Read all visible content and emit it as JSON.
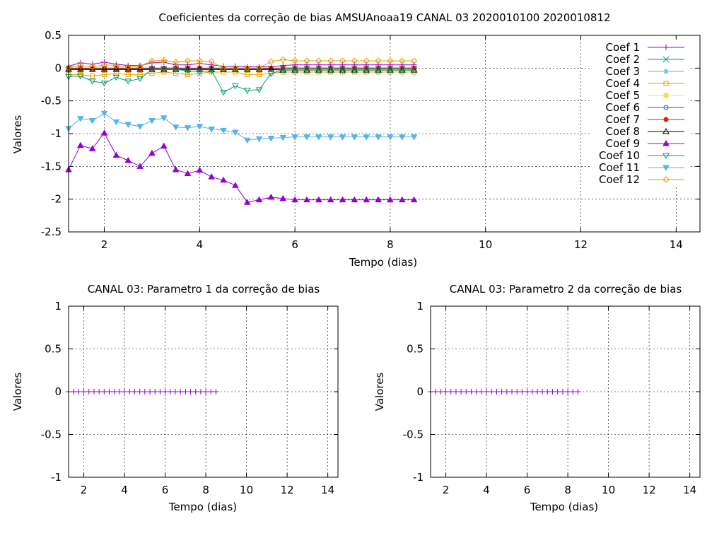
{
  "chart_data": [
    {
      "type": "line",
      "title": "Coeficientes da correção de bias AMSUAnoaa19 CANAL 03 2020010100 2020010812",
      "xlabel": "Tempo (dias)",
      "ylabel": "Valores",
      "xlim": [
        1.25,
        14.5
      ],
      "ylim": [
        -2.5,
        0.5
      ],
      "x_ticks": [
        "2",
        "4",
        "6",
        "8",
        "10",
        "12",
        "14"
      ],
      "y_ticks": [
        "0.5",
        "0",
        "-0.5",
        "-1",
        "-1.5",
        "-2",
        "-2.5"
      ],
      "grid": true,
      "legend_position": "top-right",
      "x": [
        1.25,
        1.5,
        1.75,
        2.0,
        2.25,
        2.5,
        2.75,
        3.0,
        3.25,
        3.5,
        3.75,
        4.0,
        4.25,
        4.5,
        4.75,
        5.0,
        5.25,
        5.5,
        5.75,
        6.0,
        6.25,
        6.5,
        6.75,
        7.0,
        7.25,
        7.5,
        7.75,
        8.0,
        8.25,
        8.5
      ],
      "series": [
        {
          "name": "Coef 1",
          "color": "#9400d3",
          "marker": "plus",
          "values": [
            0.03,
            0.08,
            0.06,
            0.09,
            0.06,
            0.04,
            0.04,
            0.08,
            0.09,
            0.05,
            0.05,
            0.07,
            0.05,
            0.03,
            0.03,
            0.02,
            0.02,
            0.02,
            0.04,
            0.05,
            0.05,
            0.05,
            0.05,
            0.05,
            0.05,
            0.05,
            0.05,
            0.05,
            0.05,
            0.05
          ]
        },
        {
          "name": "Coef 2",
          "color": "#009e73",
          "marker": "cross",
          "values": [
            -0.01,
            -0.01,
            -0.01,
            -0.01,
            -0.01,
            -0.01,
            -0.01,
            -0.01,
            -0.01,
            -0.01,
            -0.01,
            -0.01,
            -0.01,
            -0.01,
            -0.01,
            -0.01,
            -0.01,
            -0.01,
            -0.01,
            -0.01,
            -0.01,
            -0.01,
            -0.01,
            -0.01,
            -0.01,
            -0.01,
            -0.01,
            -0.01,
            -0.01,
            -0.01
          ]
        },
        {
          "name": "Coef 3",
          "color": "#56b4e9",
          "marker": "star",
          "values": [
            -0.02,
            -0.02,
            -0.02,
            -0.02,
            -0.02,
            -0.02,
            -0.02,
            -0.02,
            -0.02,
            -0.02,
            -0.02,
            -0.02,
            -0.02,
            -0.02,
            -0.02,
            -0.02,
            -0.02,
            -0.02,
            -0.02,
            -0.02,
            -0.02,
            -0.02,
            -0.02,
            -0.02,
            -0.02,
            -0.02,
            -0.02,
            -0.02,
            -0.02,
            -0.02
          ]
        },
        {
          "name": "Coef 4",
          "color": "#e69f00",
          "marker": "square-open",
          "values": [
            -0.1,
            -0.1,
            -0.12,
            -0.1,
            -0.08,
            -0.1,
            -0.1,
            -0.08,
            -0.06,
            -0.08,
            -0.1,
            -0.08,
            -0.06,
            -0.06,
            -0.06,
            -0.1,
            -0.1,
            -0.08,
            -0.06,
            -0.06,
            -0.06,
            -0.06,
            -0.06,
            -0.06,
            -0.06,
            -0.06,
            -0.06,
            -0.06,
            -0.06,
            -0.06
          ]
        },
        {
          "name": "Coef 5",
          "color": "#f0e442",
          "marker": "square",
          "values": [
            -0.02,
            -0.02,
            -0.02,
            -0.02,
            -0.02,
            -0.02,
            -0.02,
            -0.02,
            -0.02,
            -0.02,
            -0.02,
            -0.02,
            -0.02,
            -0.02,
            -0.02,
            -0.02,
            -0.02,
            -0.02,
            -0.02,
            -0.02,
            -0.02,
            -0.02,
            -0.02,
            -0.02,
            -0.02,
            -0.02,
            -0.02,
            -0.02,
            -0.02,
            -0.02
          ]
        },
        {
          "name": "Coef 6",
          "color": "#0072b2",
          "marker": "circle-open",
          "values": [
            -0.01,
            -0.01,
            -0.01,
            -0.01,
            -0.01,
            -0.01,
            -0.01,
            -0.01,
            -0.01,
            -0.01,
            -0.01,
            -0.01,
            -0.01,
            -0.01,
            -0.01,
            -0.01,
            -0.01,
            -0.01,
            0.0,
            0.0,
            0.0,
            0.0,
            0.0,
            0.0,
            0.0,
            0.0,
            0.0,
            0.0,
            0.0,
            0.0
          ]
        },
        {
          "name": "Coef 7",
          "color": "#e51e10",
          "marker": "circle",
          "values": [
            0.0,
            0.0,
            0.0,
            0.0,
            0.0,
            0.0,
            0.0,
            0.0,
            0.0,
            0.0,
            0.0,
            0.0,
            0.0,
            0.0,
            0.0,
            0.0,
            0.0,
            0.0,
            0.0,
            0.0,
            0.0,
            0.0,
            0.0,
            0.0,
            0.0,
            0.0,
            0.0,
            0.0,
            0.0,
            0.0
          ]
        },
        {
          "name": "Coef 8",
          "color": "#000000",
          "marker": "triangle-open",
          "values": [
            -0.02,
            -0.02,
            -0.02,
            -0.02,
            -0.02,
            -0.02,
            -0.02,
            -0.02,
            -0.02,
            -0.02,
            -0.02,
            -0.02,
            -0.02,
            -0.02,
            -0.02,
            -0.02,
            -0.02,
            -0.02,
            -0.03,
            -0.03,
            -0.03,
            -0.03,
            -0.03,
            -0.03,
            -0.03,
            -0.03,
            -0.03,
            -0.03,
            -0.03,
            -0.03
          ]
        },
        {
          "name": "Coef 9",
          "color": "#9400d3",
          "marker": "triangle",
          "values": [
            -1.55,
            -1.18,
            -1.23,
            -0.99,
            -1.33,
            -1.41,
            -1.5,
            -1.3,
            -1.19,
            -1.55,
            -1.61,
            -1.56,
            -1.66,
            -1.71,
            -1.79,
            -2.05,
            -2.01,
            -1.97,
            -1.99,
            -2.01,
            -2.01,
            -2.01,
            -2.01,
            -2.01,
            -2.01,
            -2.01,
            -2.01,
            -2.01,
            -2.01,
            -2.01
          ]
        },
        {
          "name": "Coef 10",
          "color": "#009e73",
          "marker": "triangle-down-open",
          "values": [
            -0.13,
            -0.12,
            -0.2,
            -0.23,
            -0.14,
            -0.2,
            -0.16,
            -0.02,
            -0.02,
            -0.02,
            -0.04,
            -0.06,
            -0.04,
            -0.37,
            -0.27,
            -0.34,
            -0.33,
            -0.08,
            -0.03,
            -0.03,
            -0.03,
            -0.03,
            -0.03,
            -0.03,
            -0.03,
            -0.03,
            -0.03,
            -0.03,
            -0.03,
            -0.03
          ]
        },
        {
          "name": "Coef 11",
          "color": "#56b4e9",
          "marker": "triangle-down",
          "values": [
            -0.92,
            -0.77,
            -0.8,
            -0.69,
            -0.82,
            -0.86,
            -0.89,
            -0.8,
            -0.76,
            -0.9,
            -0.91,
            -0.89,
            -0.93,
            -0.95,
            -0.98,
            -1.1,
            -1.08,
            -1.07,
            -1.06,
            -1.05,
            -1.05,
            -1.05,
            -1.05,
            -1.05,
            -1.05,
            -1.05,
            -1.05,
            -1.05,
            -1.05,
            -1.05
          ]
        },
        {
          "name": "Coef 12",
          "color": "#e69f00",
          "marker": "diamond-open",
          "values": [
            0.01,
            0.04,
            0.02,
            0.05,
            0.04,
            0.02,
            0.03,
            0.11,
            0.12,
            0.09,
            0.11,
            0.11,
            0.1,
            0.0,
            0.0,
            0.0,
            0.0,
            0.1,
            0.13,
            0.11,
            0.11,
            0.11,
            0.11,
            0.11,
            0.11,
            0.11,
            0.11,
            0.11,
            0.11,
            0.11
          ]
        }
      ]
    },
    {
      "type": "line",
      "title": "CANAL 03: Parametro 1 da correção de bias",
      "xlabel": "Tempo (dias)",
      "ylabel": "Valores",
      "xlim": [
        1.25,
        14.5
      ],
      "ylim": [
        -1,
        1
      ],
      "x_ticks": [
        "2",
        "4",
        "6",
        "8",
        "10",
        "12",
        "14"
      ],
      "y_ticks": [
        "1",
        "0.5",
        "0",
        "-0.5",
        "-1"
      ],
      "grid": true,
      "x": [
        1.25,
        1.5,
        1.75,
        2.0,
        2.25,
        2.5,
        2.75,
        3.0,
        3.25,
        3.5,
        3.75,
        4.0,
        4.25,
        4.5,
        4.75,
        5.0,
        5.25,
        5.5,
        5.75,
        6.0,
        6.25,
        6.5,
        6.75,
        7.0,
        7.25,
        7.5,
        7.75,
        8.0,
        8.25,
        8.5
      ],
      "series": [
        {
          "color": "#9400d3",
          "marker": "plus",
          "values": [
            0,
            0,
            0,
            0,
            0,
            0,
            0,
            0,
            0,
            0,
            0,
            0,
            0,
            0,
            0,
            0,
            0,
            0,
            0,
            0,
            0,
            0,
            0,
            0,
            0,
            0,
            0,
            0,
            0,
            0
          ]
        }
      ]
    },
    {
      "type": "line",
      "title": "CANAL 03: Parametro 2 da correção de bias",
      "xlabel": "Tempo (dias)",
      "ylabel": "Valores",
      "xlim": [
        1.25,
        14.5
      ],
      "ylim": [
        -1,
        1
      ],
      "x_ticks": [
        "2",
        "4",
        "6",
        "8",
        "10",
        "12",
        "14"
      ],
      "y_ticks": [
        "1",
        "0.5",
        "0",
        "-0.5",
        "-1"
      ],
      "grid": true,
      "x": [
        1.25,
        1.5,
        1.75,
        2.0,
        2.25,
        2.5,
        2.75,
        3.0,
        3.25,
        3.5,
        3.75,
        4.0,
        4.25,
        4.5,
        4.75,
        5.0,
        5.25,
        5.5,
        5.75,
        6.0,
        6.25,
        6.5,
        6.75,
        7.0,
        7.25,
        7.5,
        7.75,
        8.0,
        8.25,
        8.5
      ],
      "series": [
        {
          "color": "#9400d3",
          "marker": "plus",
          "values": [
            0,
            0,
            0,
            0,
            0,
            0,
            0,
            0,
            0,
            0,
            0,
            0,
            0,
            0,
            0,
            0,
            0,
            0,
            0,
            0,
            0,
            0,
            0,
            0,
            0,
            0,
            0,
            0,
            0,
            0
          ]
        }
      ]
    }
  ]
}
